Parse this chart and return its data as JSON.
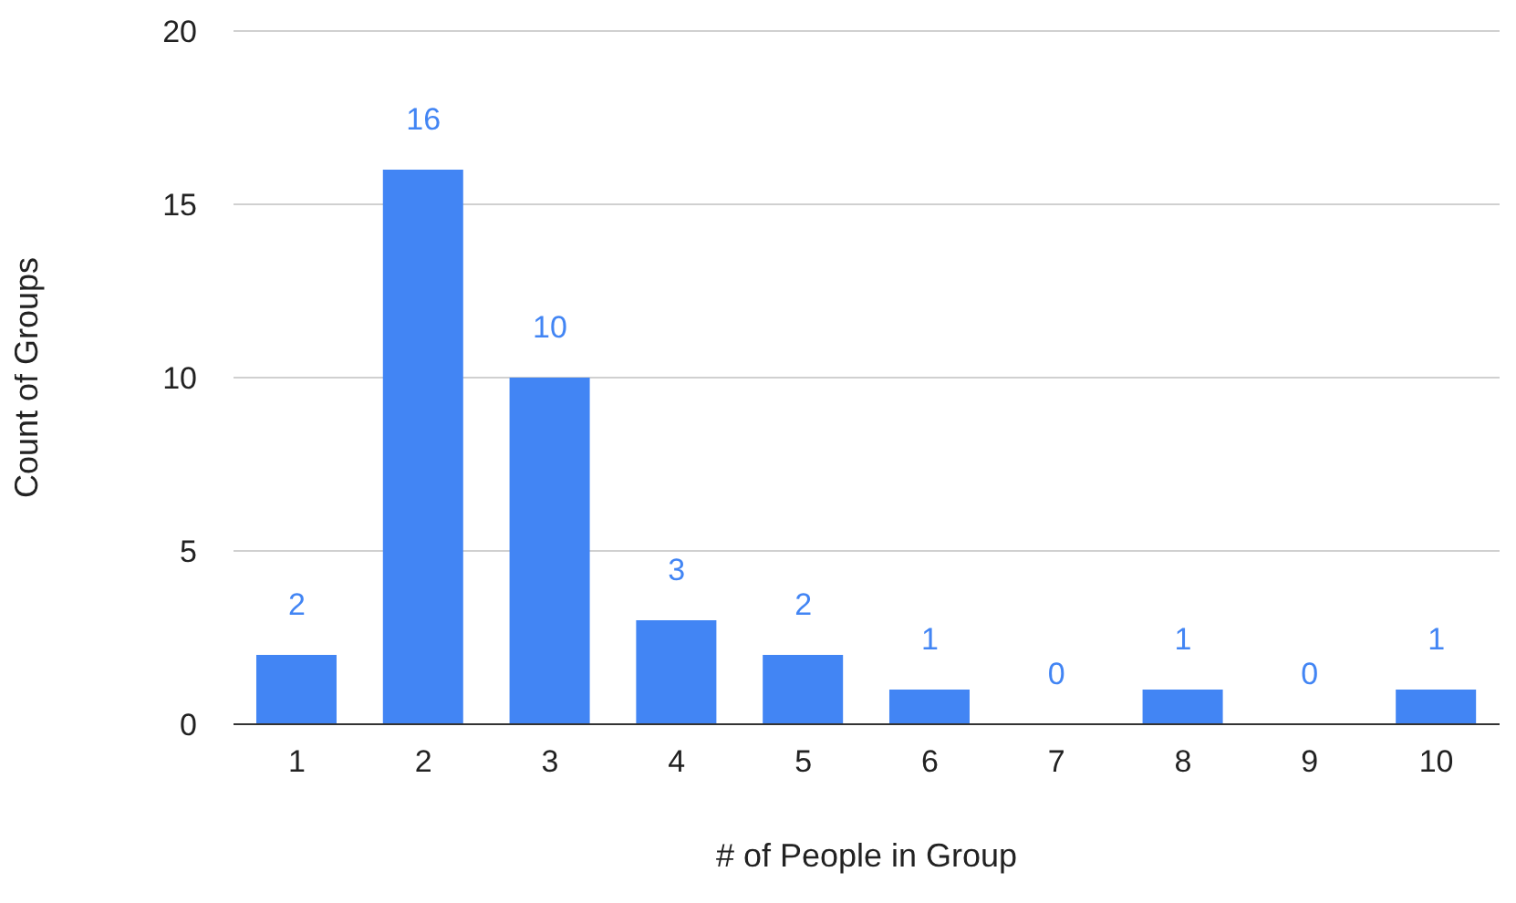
{
  "chart_data": {
    "type": "bar",
    "xlabel": "# of People in Group",
    "ylabel": "Count of Groups",
    "categories": [
      "1",
      "2",
      "3",
      "4",
      "5",
      "6",
      "7",
      "8",
      "9",
      "10"
    ],
    "values": [
      2,
      16,
      10,
      3,
      2,
      1,
      0,
      1,
      0,
      1
    ],
    "color": "#4285f4",
    "ylim": [
      0,
      20
    ],
    "yticks": [
      0,
      5,
      10,
      15,
      20
    ],
    "grid": "y",
    "data_labels": true
  }
}
